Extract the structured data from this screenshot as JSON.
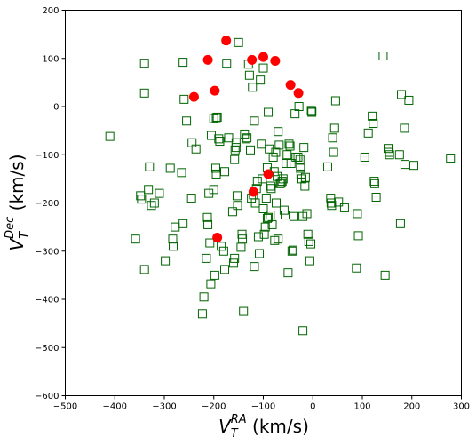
{
  "chart_data": {
    "type": "scatter",
    "title": "",
    "xlabel": {
      "main": "V",
      "sub": "T",
      "sup": "RA",
      "unit": " (km/s)"
    },
    "ylabel": {
      "main": "V",
      "sub": "T",
      "sup": "Dec",
      "unit": " (km/s)"
    },
    "xlim": [
      -500,
      300
    ],
    "ylim": [
      -600,
      200
    ],
    "xticks": [
      "−500",
      "−400",
      "−300",
      "−200",
      "−100",
      "0",
      "100",
      "200",
      "300"
    ],
    "yticks": [
      "−600",
      "−500",
      "−400",
      "−300",
      "−200",
      "−100",
      "0",
      "100",
      "200"
    ],
    "grid": false,
    "colors": {
      "squares": "#006400",
      "circles": "#ff0000"
    },
    "series": [
      {
        "marker": "open-square",
        "color": "#006400",
        "points": [
          [
            -410,
            -62
          ],
          [
            -340,
            90
          ],
          [
            -340,
            28
          ],
          [
            -262,
            92
          ],
          [
            -260,
            15
          ],
          [
            -255,
            -30
          ],
          [
            -244,
            -75
          ],
          [
            -358,
            -275
          ],
          [
            -348,
            -185
          ],
          [
            -346,
            -192
          ],
          [
            -340,
            -338
          ],
          [
            -332,
            -172
          ],
          [
            -330,
            -125
          ],
          [
            -326,
            -205
          ],
          [
            -320,
            -200
          ],
          [
            -310,
            -180
          ],
          [
            -298,
            -320
          ],
          [
            -288,
            -128
          ],
          [
            -283,
            -275
          ],
          [
            -282,
            -290
          ],
          [
            -278,
            -250
          ],
          [
            -265,
            -137
          ],
          [
            -262,
            -243
          ],
          [
            -245,
            -190
          ],
          [
            -236,
            -88
          ],
          [
            -223,
            -430
          ],
          [
            -220,
            -395
          ],
          [
            -215,
            -315
          ],
          [
            -213,
            -230
          ],
          [
            -212,
            -245
          ],
          [
            -210,
            -180
          ],
          [
            -208,
            -283
          ],
          [
            -206,
            -368
          ],
          [
            -205,
            -60
          ],
          [
            -200,
            -25
          ],
          [
            -200,
            -172
          ],
          [
            -198,
            -350
          ],
          [
            -196,
            -128
          ],
          [
            -195,
            -140
          ],
          [
            -195,
            -23
          ],
          [
            -193,
            -22
          ],
          [
            -190,
            -67
          ],
          [
            -188,
            -72
          ],
          [
            -185,
            -290
          ],
          [
            -180,
            -300
          ],
          [
            -178,
            -338
          ],
          [
            -178,
            -135
          ],
          [
            -174,
            90
          ],
          [
            -170,
            -65
          ],
          [
            -162,
            -218
          ],
          [
            -160,
            -325
          ],
          [
            -158,
            -315
          ],
          [
            -158,
            -110
          ],
          [
            -157,
            -90
          ],
          [
            -155,
            -85
          ],
          [
            -155,
            -75
          ],
          [
            -153,
            -185
          ],
          [
            -152,
            -205
          ],
          [
            -150,
            133
          ],
          [
            -145,
            -292
          ],
          [
            -143,
            -265
          ],
          [
            -142,
            -275
          ],
          [
            -140,
            -425
          ],
          [
            -138,
            -57
          ],
          [
            -135,
            -67
          ],
          [
            -133,
            -65
          ],
          [
            -130,
            88
          ],
          [
            -128,
            65
          ],
          [
            -126,
            -90
          ],
          [
            -124,
            -190
          ],
          [
            -122,
            40
          ],
          [
            -120,
            -183
          ],
          [
            -118,
            -332
          ],
          [
            -118,
            -30
          ],
          [
            -116,
            -200
          ],
          [
            -114,
            -170
          ],
          [
            -112,
            -155
          ],
          [
            -110,
            -270
          ],
          [
            -108,
            -305
          ],
          [
            -106,
            55
          ],
          [
            -104,
            -78
          ],
          [
            -102,
            -150
          ],
          [
            -100,
            -212
          ],
          [
            -100,
            80
          ],
          [
            -98,
            -265
          ],
          [
            -96,
            -250
          ],
          [
            -94,
            -190
          ],
          [
            -92,
            -232
          ],
          [
            -92,
            -127
          ],
          [
            -90,
            -230
          ],
          [
            -90,
            -12
          ],
          [
            -88,
            -88
          ],
          [
            -86,
            -225
          ],
          [
            -85,
            -165
          ],
          [
            -84,
            -170
          ],
          [
            -82,
            -245
          ],
          [
            -80,
            -105
          ],
          [
            -78,
            -135
          ],
          [
            -77,
            -278
          ],
          [
            -75,
            -95
          ],
          [
            -74,
            -200
          ],
          [
            -72,
            -145
          ],
          [
            -70,
            -52
          ],
          [
            -70,
            -275
          ],
          [
            -68,
            -80
          ],
          [
            -66,
            -160
          ],
          [
            -64,
            -158
          ],
          [
            -62,
            -155
          ],
          [
            -60,
            -150
          ],
          [
            -58,
            -215
          ],
          [
            -56,
            -225
          ],
          [
            -54,
            -118
          ],
          [
            -52,
            -100
          ],
          [
            -50,
            -345
          ],
          [
            -48,
            -78
          ],
          [
            -46,
            -82
          ],
          [
            -44,
            -118
          ],
          [
            -42,
            -300
          ],
          [
            -40,
            -298
          ],
          [
            -38,
            -228
          ],
          [
            -36,
            -15
          ],
          [
            -34,
            -105
          ],
          [
            -30,
            -105
          ],
          [
            -28,
            0
          ],
          [
            -26,
            -110
          ],
          [
            -25,
            -128
          ],
          [
            -24,
            -140
          ],
          [
            -22,
            -150
          ],
          [
            -20,
            -465
          ],
          [
            -20,
            -228
          ],
          [
            -18,
            -85
          ],
          [
            -16,
            -165
          ],
          [
            -15,
            -147
          ],
          [
            -12,
            -222
          ],
          [
            -10,
            -265
          ],
          [
            -8,
            -280
          ],
          [
            -6,
            -320
          ],
          [
            -4,
            -285
          ],
          [
            -3,
            -8
          ],
          [
            -2,
            -10
          ],
          [
            -2,
            -12
          ],
          [
            30,
            -125
          ],
          [
            36,
            -190
          ],
          [
            37,
            -200
          ],
          [
            38,
            -205
          ],
          [
            40,
            -65
          ],
          [
            42,
            -95
          ],
          [
            44,
            -45
          ],
          [
            46,
            12
          ],
          [
            52,
            -198
          ],
          [
            64,
            -210
          ],
          [
            88,
            -335
          ],
          [
            90,
            -222
          ],
          [
            92,
            -268
          ],
          [
            105,
            -105
          ],
          [
            112,
            -55
          ],
          [
            120,
            -20
          ],
          [
            122,
            -35
          ],
          [
            124,
            -155
          ],
          [
            125,
            -160
          ],
          [
            128,
            -188
          ],
          [
            142,
            105
          ],
          [
            146,
            -350
          ],
          [
            152,
            -87
          ],
          [
            154,
            -95
          ],
          [
            155,
            -100
          ],
          [
            175,
            -100
          ],
          [
            177,
            -243
          ],
          [
            179,
            25
          ],
          [
            185,
            -45
          ],
          [
            186,
            -120
          ],
          [
            194,
            13
          ],
          [
            204,
            -122
          ],
          [
            278,
            -107
          ]
        ]
      },
      {
        "marker": "filled-circle",
        "color": "#ff0000",
        "points": [
          [
            -240,
            20
          ],
          [
            -212,
            97
          ],
          [
            -198,
            33
          ],
          [
            -175,
            137
          ],
          [
            -123,
            97
          ],
          [
            -100,
            103
          ],
          [
            -76,
            95
          ],
          [
            -45,
            45
          ],
          [
            -29,
            28
          ],
          [
            -120,
            -177
          ],
          [
            -90,
            -140
          ],
          [
            -193,
            -272
          ]
        ]
      }
    ]
  }
}
